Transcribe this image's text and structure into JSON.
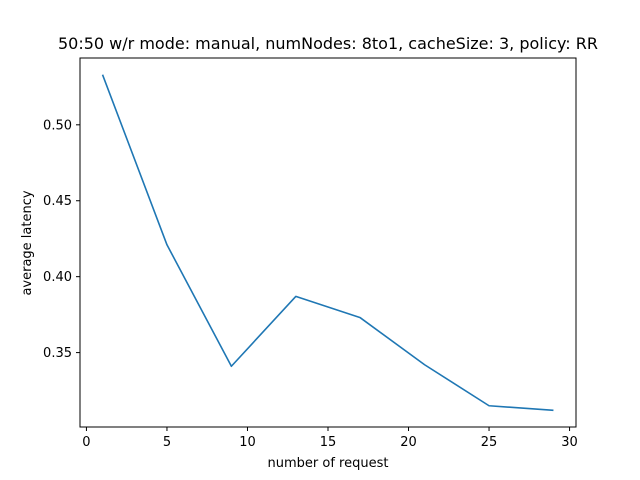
{
  "chart_data": {
    "type": "line",
    "title": "50:50 w/r mode: manual, numNodes: 8to1, cacheSize: 3, policy: RR",
    "xlabel": "number of request",
    "ylabel": "average latency",
    "x": [
      1,
      5,
      9,
      13,
      17,
      21,
      25,
      29
    ],
    "series": [
      {
        "values": [
          0.533,
          0.421,
          0.341,
          0.387,
          0.373,
          0.342,
          0.315,
          0.312
        ],
        "color": "#1f77b4"
      }
    ],
    "xlim": [
      -0.4,
      30.4
    ],
    "ylim": [
      0.301,
      0.544
    ],
    "xticks": [
      0,
      5,
      10,
      15,
      20,
      25,
      30
    ],
    "yticks": [
      0.35,
      0.4,
      0.45,
      0.5
    ],
    "xtick_labels": [
      "0",
      "5",
      "10",
      "15",
      "20",
      "25",
      "30"
    ],
    "ytick_labels": [
      "0.35",
      "0.40",
      "0.45",
      "0.50"
    ],
    "grid": false,
    "legend": false
  }
}
